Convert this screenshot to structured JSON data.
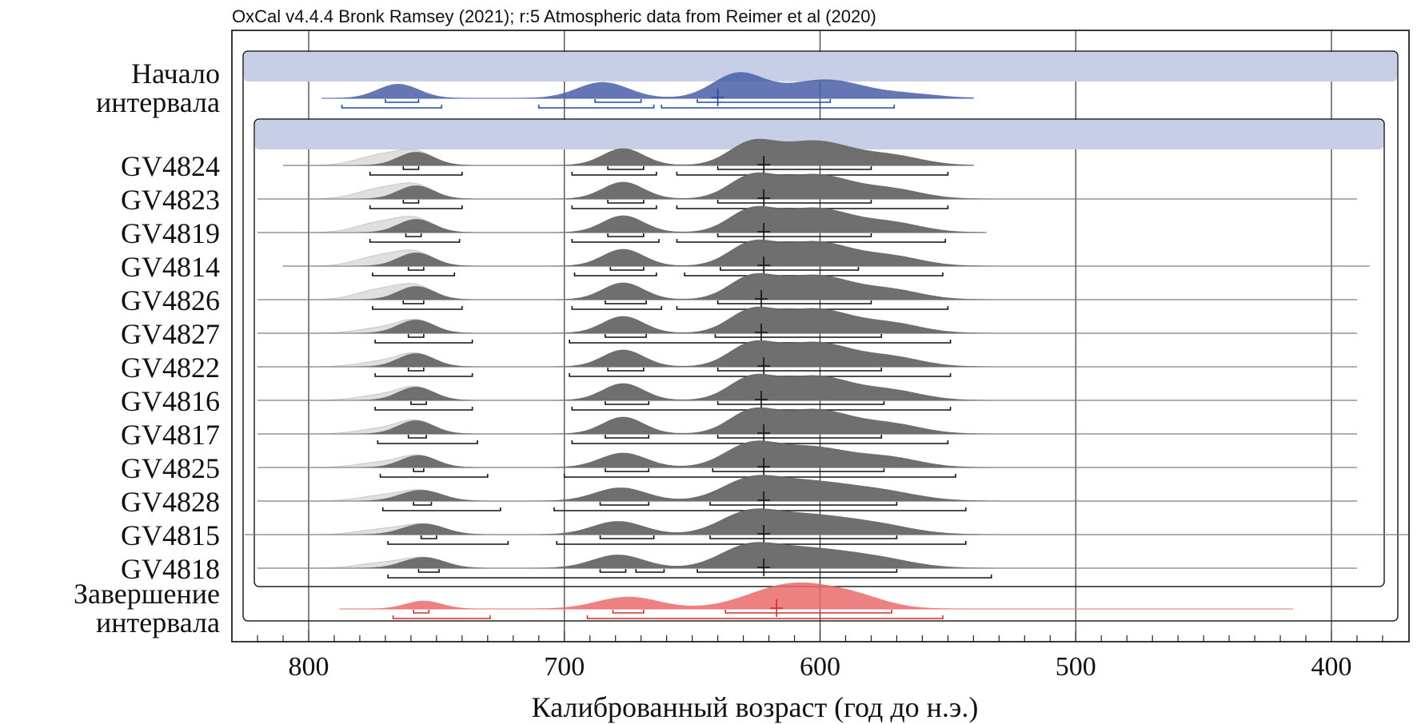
{
  "header": {
    "text": "OxCal v4.4.4 Bronk Ramsey (2021); r:5 Atmospheric data from Reimer et al (2020)"
  },
  "chart_data": {
    "type": "area",
    "subtype": "multiplot-density",
    "xlabel": "Калиброванный возраст (год до н.э.)",
    "x_direction": "reversed",
    "xlim": [
      830,
      370
    ],
    "xticks": [
      800,
      700,
      600,
      500,
      400
    ],
    "minor_tick_step": 10,
    "grid": "vertical at major ticks",
    "colors": {
      "start": "#4a5fa8",
      "start_line": "#2149a3",
      "end": "#ea6a6a",
      "end_line": "#d32f2f",
      "sample": "#666666",
      "prior": "#dcdcdc",
      "phase_band": "#c6cfe6"
    },
    "rows": [
      {
        "label_lines": [
          "Начало",
          "интервала"
        ],
        "kind": "start",
        "curve_range": [
          795,
          540
        ],
        "peaks": [
          [
            765,
            8,
            0.55
          ],
          [
            685,
            10,
            0.62
          ],
          [
            632,
            10,
            0.95
          ],
          [
            598,
            15,
            0.72
          ],
          [
            565,
            12,
            0.15
          ]
        ],
        "range68": [
          [
            770,
            757
          ],
          [
            688,
            670
          ],
          [
            648,
            596
          ]
        ],
        "range95": [
          [
            787,
            748
          ],
          [
            710,
            665
          ],
          [
            662,
            571
          ]
        ],
        "mean": 640
      },
      {
        "label_lines": [
          "GV4824"
        ],
        "kind": "sample",
        "curve_range": [
          810,
          540
        ],
        "peaks": [
          [
            758,
            7,
            0.55
          ],
          [
            677,
            8,
            0.7
          ],
          [
            627,
            9,
            0.85
          ],
          [
            602,
            14,
            1.0
          ],
          [
            572,
            12,
            0.38
          ]
        ],
        "range68": [
          [
            763,
            757
          ],
          [
            683,
            669
          ],
          [
            640,
            580
          ]
        ],
        "range95": [
          [
            776,
            740
          ],
          [
            697,
            664
          ],
          [
            656,
            550
          ]
        ],
        "mean": 622
      },
      {
        "label_lines": [
          "GV4823"
        ],
        "kind": "sample",
        "curve_range": [
          820,
          390
        ],
        "peaks": [
          [
            758,
            7,
            0.55
          ],
          [
            677,
            8,
            0.7
          ],
          [
            627,
            9,
            0.85
          ],
          [
            602,
            14,
            1.0
          ],
          [
            572,
            12,
            0.38
          ]
        ],
        "range68": [
          [
            763,
            757
          ],
          [
            683,
            669
          ],
          [
            640,
            580
          ]
        ],
        "range95": [
          [
            776,
            740
          ],
          [
            697,
            664
          ],
          [
            656,
            550
          ]
        ],
        "mean": 622
      },
      {
        "label_lines": [
          "GV4819"
        ],
        "kind": "sample",
        "curve_range": [
          820,
          535
        ],
        "peaks": [
          [
            758,
            7,
            0.55
          ],
          [
            677,
            8,
            0.7
          ],
          [
            627,
            9,
            0.85
          ],
          [
            602,
            14,
            1.0
          ],
          [
            572,
            12,
            0.38
          ]
        ],
        "range68": [
          [
            762,
            756
          ],
          [
            683,
            669
          ],
          [
            640,
            580
          ]
        ],
        "range95": [
          [
            776,
            741
          ],
          [
            697,
            663
          ],
          [
            656,
            551
          ]
        ],
        "mean": 622
      },
      {
        "label_lines": [
          "GV4814"
        ],
        "kind": "sample",
        "curve_range": [
          810,
          385
        ],
        "peaks": [
          [
            758,
            7,
            0.55
          ],
          [
            677,
            8,
            0.7
          ],
          [
            627,
            9,
            0.85
          ],
          [
            602,
            14,
            1.0
          ],
          [
            572,
            12,
            0.38
          ]
        ],
        "range68": [
          [
            761,
            755
          ],
          [
            682,
            669
          ],
          [
            639,
            585
          ]
        ],
        "range95": [
          [
            775,
            743
          ],
          [
            696,
            664
          ],
          [
            653,
            552
          ]
        ],
        "mean": 622
      },
      {
        "label_lines": [
          "GV4826"
        ],
        "kind": "sample",
        "curve_range": [
          820,
          390
        ],
        "peaks": [
          [
            758,
            7,
            0.55
          ],
          [
            677,
            8,
            0.7
          ],
          [
            627,
            9,
            0.85
          ],
          [
            602,
            14,
            1.0
          ],
          [
            572,
            12,
            0.38
          ]
        ],
        "range68": [
          [
            763,
            755
          ],
          [
            684,
            668
          ],
          [
            640,
            580
          ]
        ],
        "range95": [
          [
            775,
            740
          ],
          [
            697,
            662
          ],
          [
            656,
            550
          ]
        ],
        "mean": 623
      },
      {
        "label_lines": [
          "GV4827"
        ],
        "kind": "sample",
        "curve_range": [
          820,
          390
        ],
        "peaks": [
          [
            758,
            7,
            0.55
          ],
          [
            677,
            8,
            0.7
          ],
          [
            627,
            9,
            0.85
          ],
          [
            602,
            14,
            1.0
          ],
          [
            572,
            12,
            0.38
          ]
        ],
        "range68": [
          [
            761,
            755
          ],
          [
            684,
            668
          ],
          [
            641,
            576
          ]
        ],
        "range95": [
          [
            774,
            736
          ],
          [
            698,
            549
          ]
        ],
        "mean": 623
      },
      {
        "label_lines": [
          "GV4822"
        ],
        "kind": "sample",
        "curve_range": [
          820,
          390
        ],
        "peaks": [
          [
            758,
            7,
            0.55
          ],
          [
            677,
            8,
            0.7
          ],
          [
            627,
            9,
            0.85
          ],
          [
            602,
            14,
            1.0
          ],
          [
            572,
            12,
            0.38
          ]
        ],
        "range68": [
          [
            761,
            755
          ],
          [
            683,
            669
          ],
          [
            640,
            576
          ]
        ],
        "range95": [
          [
            774,
            736
          ],
          [
            698,
            549
          ]
        ],
        "mean": 622
      },
      {
        "label_lines": [
          "GV4816"
        ],
        "kind": "sample",
        "curve_range": [
          820,
          390
        ],
        "peaks": [
          [
            758,
            7,
            0.55
          ],
          [
            677,
            8,
            0.7
          ],
          [
            627,
            9,
            0.85
          ],
          [
            602,
            14,
            1.0
          ],
          [
            572,
            12,
            0.38
          ]
        ],
        "range68": [
          [
            760,
            754
          ],
          [
            684,
            667
          ],
          [
            640,
            575
          ]
        ],
        "range95": [
          [
            774,
            736
          ],
          [
            697,
            549
          ]
        ],
        "mean": 623
      },
      {
        "label_lines": [
          "GV4817"
        ],
        "kind": "sample",
        "curve_range": [
          820,
          390
        ],
        "peaks": [
          [
            758,
            7,
            0.55
          ],
          [
            677,
            8,
            0.7
          ],
          [
            627,
            9,
            0.85
          ],
          [
            602,
            14,
            1.0
          ],
          [
            572,
            12,
            0.38
          ]
        ],
        "range68": [
          [
            761,
            754
          ],
          [
            684,
            667
          ],
          [
            640,
            576
          ]
        ],
        "range95": [
          [
            773,
            734
          ],
          [
            697,
            550
          ]
        ],
        "mean": 622
      },
      {
        "label_lines": [
          "GV4825"
        ],
        "kind": "sample",
        "curve_range": [
          820,
          390
        ],
        "peaks": [
          [
            757,
            7,
            0.5
          ],
          [
            677,
            9,
            0.6
          ],
          [
            628,
            10,
            0.78
          ],
          [
            604,
            16,
            0.85
          ],
          [
            572,
            12,
            0.35
          ]
        ],
        "range68": [
          [
            759,
            755
          ],
          [
            684,
            667
          ],
          [
            642,
            575
          ]
        ],
        "range95": [
          [
            772,
            730
          ],
          [
            700,
            547
          ]
        ],
        "mean": 622
      },
      {
        "label_lines": [
          "GV4828"
        ],
        "kind": "sample",
        "curve_range": [
          820,
          390
        ],
        "peaks": [
          [
            756,
            8,
            0.45
          ],
          [
            678,
            10,
            0.55
          ],
          [
            628,
            11,
            0.7
          ],
          [
            605,
            17,
            0.78
          ],
          [
            575,
            14,
            0.33
          ]
        ],
        "range68": [
          [
            759,
            752
          ],
          [
            686,
            667
          ],
          [
            643,
            570
          ]
        ],
        "range95": [
          [
            771,
            725
          ],
          [
            704,
            543
          ]
        ],
        "mean": 622
      },
      {
        "label_lines": [
          "GV4815"
        ],
        "kind": "sample",
        "curve_range": [
          825,
          370
        ],
        "peaks": [
          [
            755,
            8,
            0.45
          ],
          [
            679,
            10,
            0.55
          ],
          [
            629,
            11,
            0.7
          ],
          [
            606,
            17,
            0.78
          ],
          [
            577,
            14,
            0.33
          ]
        ],
        "range68": [
          [
            756,
            750
          ],
          [
            686,
            665
          ],
          [
            643,
            570
          ]
        ],
        "range95": [
          [
            769,
            722
          ],
          [
            703,
            543
          ]
        ],
        "mean": 622
      },
      {
        "label_lines": [
          "GV4818"
        ],
        "kind": "sample",
        "curve_range": [
          820,
          390
        ],
        "peaks": [
          [
            755,
            8,
            0.45
          ],
          [
            679,
            10,
            0.55
          ],
          [
            629,
            11,
            0.7
          ],
          [
            606,
            17,
            0.78
          ],
          [
            577,
            14,
            0.33
          ]
        ],
        "range68": [
          [
            757,
            749
          ],
          [
            686,
            676
          ],
          [
            672,
            661
          ],
          [
            648,
            570
          ]
        ],
        "range95": [
          [
            769,
            533
          ]
        ],
        "mean": 622
      },
      {
        "label_lines": [
          "Завершение",
          "интервала"
        ],
        "kind": "end",
        "curve_range": [
          788,
          415
        ],
        "peaks": [
          [
            755,
            7,
            0.3
          ],
          [
            675,
            12,
            0.45
          ],
          [
            610,
            17,
            0.95
          ],
          [
            585,
            12,
            0.3
          ]
        ],
        "range68": [
          [
            759,
            753
          ],
          [
            681,
            669
          ],
          [
            637,
            572
          ]
        ],
        "range95": [
          [
            767,
            729
          ],
          [
            691,
            552
          ]
        ],
        "mean": 617
      }
    ]
  }
}
